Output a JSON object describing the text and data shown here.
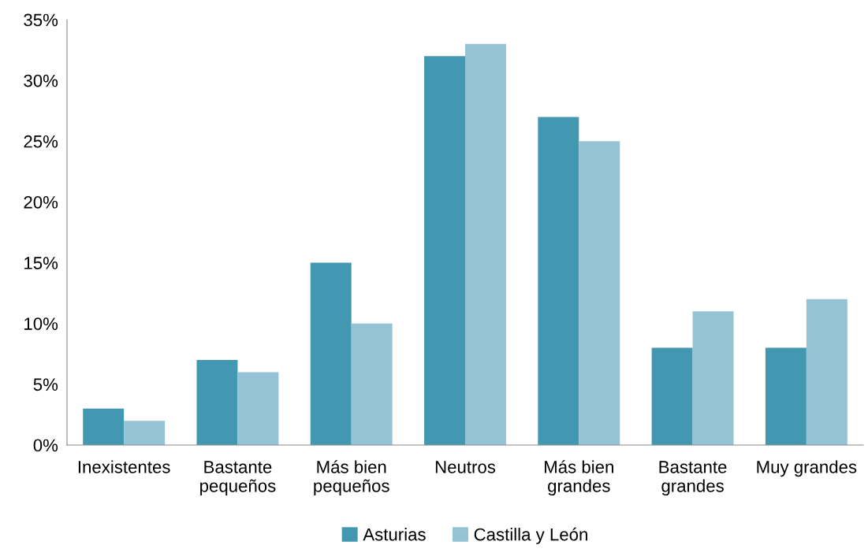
{
  "chart_data": {
    "type": "bar",
    "categories": [
      "Inexistentes",
      "Bastante\npequeños",
      "Más bien\npequeños",
      "Neutros",
      "Más bien\ngrandes",
      "Bastante\ngrandes",
      "Muy grandes"
    ],
    "series": [
      {
        "name": "Asturias",
        "color": "#4298b0",
        "values": [
          3,
          7,
          15,
          32,
          27,
          8,
          8
        ]
      },
      {
        "name": "Castilla y León",
        "color": "#93c3d4",
        "values": [
          2,
          6,
          10,
          33,
          25,
          11,
          12
        ]
      }
    ],
    "ylim": [
      0,
      35
    ],
    "yticks": [
      {
        "value": 0,
        "label": "0%"
      },
      {
        "value": 5,
        "label": "5%"
      },
      {
        "value": 10,
        "label": "10%"
      },
      {
        "value": 15,
        "label": "15%"
      },
      {
        "value": 20,
        "label": "20%"
      },
      {
        "value": 25,
        "label": "25%"
      },
      {
        "value": 30,
        "label": "30%"
      },
      {
        "value": 35,
        "label": "35%"
      }
    ],
    "legend": "bottom"
  }
}
